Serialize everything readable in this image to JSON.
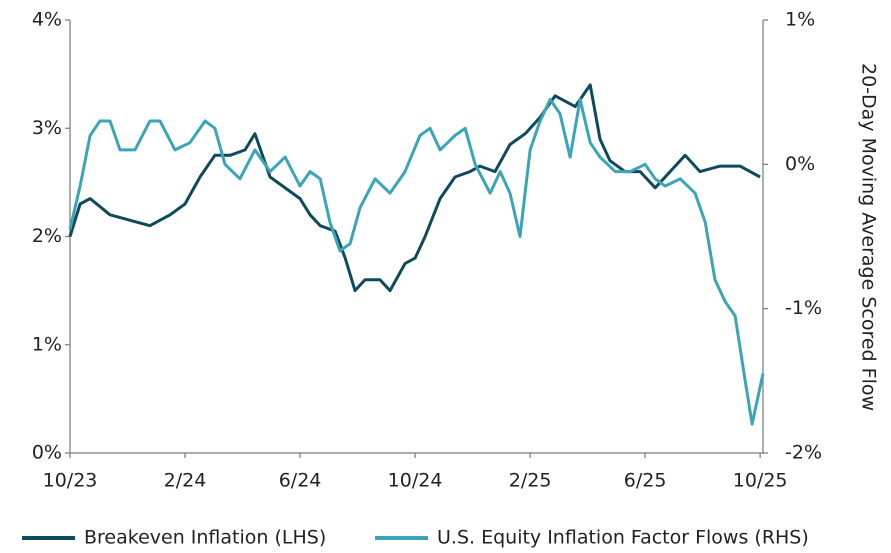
{
  "chart_data": {
    "type": "line",
    "y2label": "20-Day Moving Average Scored Flow",
    "xlim": [
      0,
      24.1
    ],
    "xticks": [
      {
        "value": 0,
        "label": "10/23"
      },
      {
        "value": 4,
        "label": "2/24"
      },
      {
        "value": 8,
        "label": "6/24"
      },
      {
        "value": 12,
        "label": "10/24"
      },
      {
        "value": 16,
        "label": "2/25"
      },
      {
        "value": 20,
        "label": "6/25"
      },
      {
        "value": 24,
        "label": "10/25"
      }
    ],
    "ylim": [
      0,
      4
    ],
    "yticks": [
      {
        "value": 0,
        "label": "0%"
      },
      {
        "value": 1,
        "label": "1%"
      },
      {
        "value": 2,
        "label": "2%"
      },
      {
        "value": 3,
        "label": "3%"
      },
      {
        "value": 4,
        "label": "4%"
      }
    ],
    "y2lim": [
      -2,
      1
    ],
    "y2ticks": [
      {
        "value": 1,
        "label": "1%"
      },
      {
        "value": 0,
        "label": "0%"
      },
      {
        "value": -1,
        "label": "-1%"
      },
      {
        "value": -2,
        "label": "-2%"
      }
    ],
    "legend": "bottom",
    "series": [
      {
        "name": "Breakeven Inflation (LHS)",
        "color": "#0d4a5c",
        "axis": "y",
        "x": [
          0,
          0.35,
          0.7,
          1.39,
          2.09,
          2.78,
          3.48,
          4,
          4.52,
          5.04,
          5.57,
          6.09,
          6.43,
          6.96,
          8,
          8.35,
          8.7,
          9.22,
          9.57,
          9.91,
          10.26,
          10.78,
          11.13,
          11.65,
          12,
          12.35,
          12.87,
          13.39,
          13.91,
          14.26,
          14.78,
          15.3,
          15.83,
          16.35,
          16.87,
          17.57,
          18.09,
          18.43,
          18.78,
          19.3,
          19.83,
          20.35,
          20.87,
          21.39,
          21.91,
          22.61,
          23.3,
          24
        ],
        "values": [
          2.0,
          2.3,
          2.35,
          2.2,
          2.15,
          2.1,
          2.2,
          2.3,
          2.55,
          2.75,
          2.75,
          2.8,
          2.95,
          2.55,
          2.35,
          2.2,
          2.1,
          2.05,
          1.8,
          1.5,
          1.6,
          1.6,
          1.5,
          1.75,
          1.8,
          2.0,
          2.35,
          2.55,
          2.6,
          2.65,
          2.6,
          2.85,
          2.95,
          3.1,
          3.3,
          3.2,
          3.4,
          2.9,
          2.7,
          2.6,
          2.6,
          2.45,
          2.6,
          2.75,
          2.6,
          2.65,
          2.65,
          2.55
        ]
      },
      {
        "name": "U.S. Equity Inflation Factor Flows (RHS)",
        "color": "#3aa5b8",
        "axis": "y2",
        "x": [
          0,
          0.35,
          0.7,
          1.04,
          1.39,
          1.74,
          2.26,
          2.78,
          3.13,
          3.65,
          4.17,
          4.7,
          5.04,
          5.39,
          5.91,
          6.43,
          6.96,
          7.48,
          8,
          8.35,
          8.7,
          9.04,
          9.39,
          9.74,
          10.09,
          10.61,
          11.13,
          11.65,
          12.17,
          12.52,
          12.87,
          13.39,
          13.74,
          14.09,
          14.61,
          14.96,
          15.3,
          15.65,
          16,
          16.35,
          16.7,
          17.04,
          17.39,
          17.74,
          18.09,
          18.43,
          18.96,
          19.48,
          20,
          20.35,
          20.7,
          21.22,
          21.74,
          22.09,
          22.43,
          22.78,
          23.13,
          23.48,
          23.72,
          24.1
        ],
        "values": [
          -0.45,
          -0.15,
          0.2,
          0.3,
          0.3,
          0.1,
          0.1,
          0.3,
          0.3,
          0.1,
          0.15,
          0.3,
          0.25,
          0,
          -0.1,
          0.1,
          -0.05,
          0.05,
          -0.15,
          -0.05,
          -0.1,
          -0.4,
          -0.6,
          -0.55,
          -0.3,
          -0.1,
          -0.2,
          -0.05,
          0.2,
          0.25,
          0.1,
          0.2,
          0.25,
          0,
          -0.2,
          -0.05,
          -0.2,
          -0.5,
          0.1,
          0.3,
          0.45,
          0.35,
          0.05,
          0.45,
          0.15,
          0.05,
          -0.05,
          -0.05,
          0,
          -0.1,
          -0.15,
          -0.1,
          -0.2,
          -0.4,
          -0.8,
          -0.95,
          -1.05,
          -1.5,
          -1.8,
          -1.45
        ]
      }
    ]
  }
}
